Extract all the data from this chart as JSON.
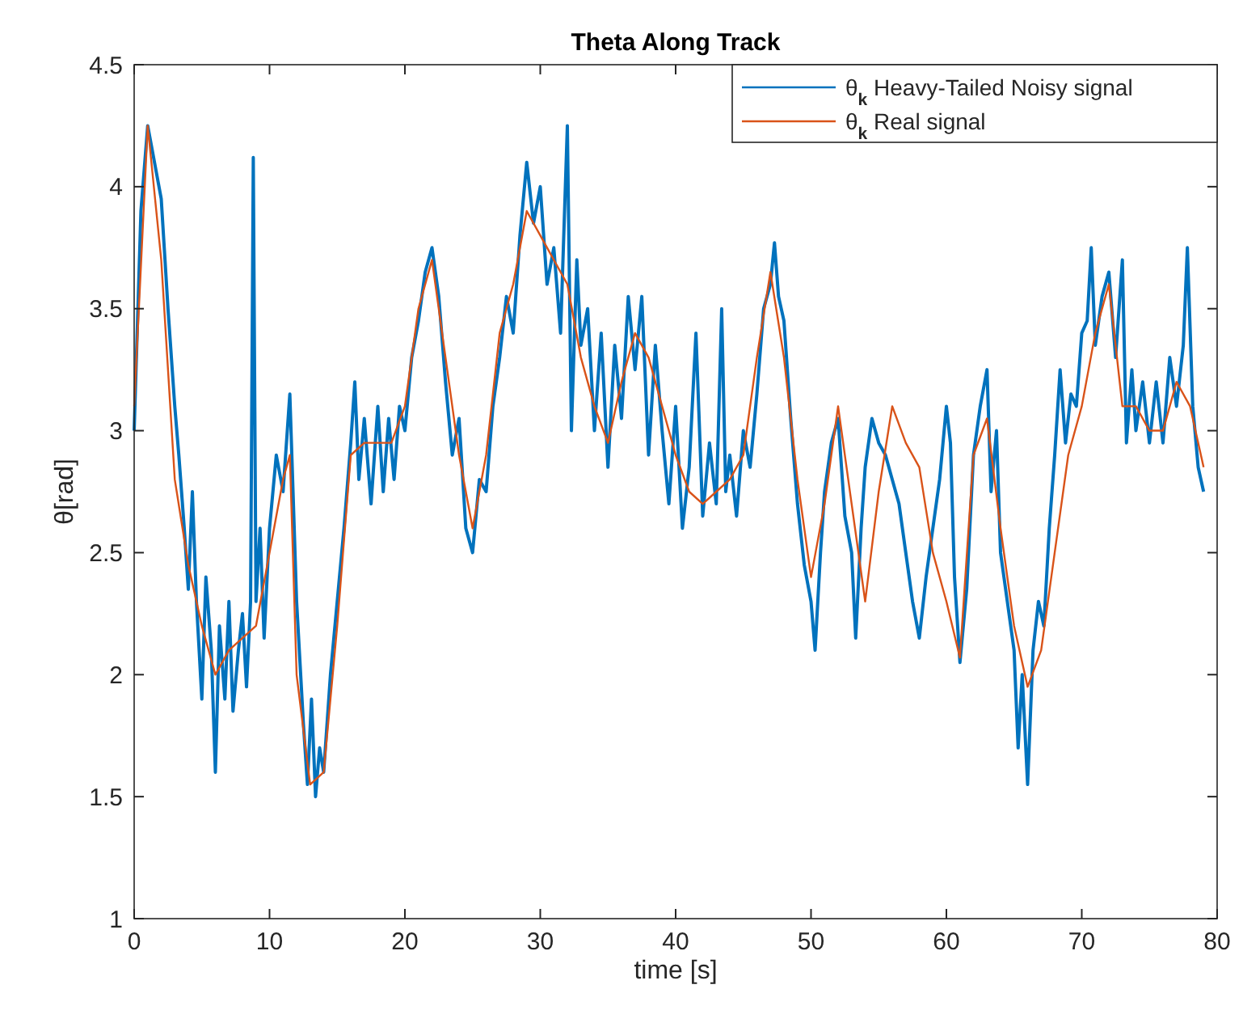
{
  "chart_data": {
    "type": "line",
    "title": "Theta Along Track",
    "xlabel": "time [s]",
    "ylabel": "θ[rad]",
    "xlim": [
      0,
      80
    ],
    "xticks": [
      0,
      10,
      20,
      30,
      40,
      50,
      60,
      70,
      80
    ],
    "ylim": [
      1,
      4.5
    ],
    "yticks": [
      1,
      1.5,
      2,
      2.5,
      3,
      3.5,
      4,
      4.5
    ],
    "grid": false,
    "legend": "top right",
    "line_style": "solid",
    "marker": "none",
    "series": [
      {
        "name": "θ$_{k}$ Heavy-Tailed Noisy signal",
        "color": "#0072bd",
        "x": [
          0,
          0.5,
          1,
          1.5,
          2,
          2.5,
          3,
          3.3,
          3.7,
          4,
          4.3,
          4.6,
          5,
          5.3,
          5.7,
          6,
          6.3,
          6.7,
          7,
          7.3,
          7.7,
          8,
          8.3,
          8.6,
          8.8,
          9,
          9.3,
          9.6,
          10,
          10.5,
          11,
          11.5,
          12,
          12.5,
          12.8,
          13.1,
          13.4,
          13.7,
          14,
          14.5,
          15,
          15.5,
          16,
          16.3,
          16.6,
          17,
          17.5,
          18,
          18.4,
          18.8,
          19.2,
          19.6,
          20,
          20.5,
          21,
          21.5,
          22,
          22.5,
          23,
          23.5,
          24,
          24.5,
          25,
          25.5,
          26,
          26.5,
          27,
          27.5,
          28,
          28.5,
          29,
          29.5,
          30,
          30.5,
          31,
          31.5,
          32,
          32.3,
          32.7,
          33,
          33.5,
          34,
          34.5,
          35,
          35.5,
          36,
          36.5,
          37,
          37.5,
          38,
          38.5,
          39,
          39.5,
          40,
          40.5,
          41,
          41.5,
          42,
          42.5,
          43,
          43.4,
          43.7,
          44,
          44.5,
          45,
          45.5,
          46,
          46.5,
          47,
          47.3,
          47.6,
          48,
          48.5,
          49,
          49.5,
          50,
          50.3,
          50.7,
          51,
          51.5,
          52,
          52.5,
          53,
          53.3,
          53.7,
          54,
          54.5,
          55,
          55.5,
          56,
          56.5,
          57,
          57.5,
          58,
          58.5,
          59,
          59.5,
          60,
          60.3,
          60.6,
          61,
          61.5,
          62,
          62.5,
          63,
          63.3,
          63.7,
          64,
          64.5,
          65,
          65.3,
          65.6,
          66,
          66.4,
          66.8,
          67.2,
          67.6,
          68,
          68.4,
          68.8,
          69.2,
          69.6,
          70,
          70.4,
          70.7,
          71,
          71.5,
          72,
          72.5,
          73,
          73.3,
          73.7,
          74,
          74.5,
          75,
          75.5,
          76,
          76.5,
          77,
          77.5,
          77.8,
          78.2,
          78.6,
          79
        ],
        "values": [
          3.0,
          3.9,
          4.25,
          4.1,
          3.95,
          3.5,
          3.1,
          2.9,
          2.6,
          2.35,
          2.75,
          2.3,
          1.9,
          2.4,
          2.1,
          1.6,
          2.2,
          1.9,
          2.3,
          1.85,
          2.1,
          2.25,
          1.95,
          2.3,
          4.12,
          2.3,
          2.6,
          2.15,
          2.6,
          2.9,
          2.75,
          3.15,
          2.3,
          1.8,
          1.55,
          1.9,
          1.5,
          1.7,
          1.6,
          2.0,
          2.3,
          2.6,
          2.95,
          3.2,
          2.8,
          3.05,
          2.7,
          3.1,
          2.75,
          3.05,
          2.8,
          3.1,
          3.0,
          3.3,
          3.45,
          3.65,
          3.75,
          3.55,
          3.2,
          2.9,
          3.05,
          2.6,
          2.5,
          2.8,
          2.75,
          3.1,
          3.3,
          3.55,
          3.4,
          3.8,
          4.1,
          3.85,
          4.0,
          3.6,
          3.75,
          3.4,
          4.25,
          3.0,
          3.7,
          3.35,
          3.5,
          3.0,
          3.4,
          2.85,
          3.35,
          3.05,
          3.55,
          3.25,
          3.55,
          2.9,
          3.35,
          3.0,
          2.7,
          3.1,
          2.6,
          2.85,
          3.4,
          2.65,
          2.95,
          2.7,
          3.5,
          2.75,
          2.9,
          2.65,
          3.0,
          2.85,
          3.15,
          3.5,
          3.6,
          3.77,
          3.55,
          3.45,
          3.05,
          2.7,
          2.45,
          2.3,
          2.1,
          2.5,
          2.75,
          2.95,
          3.05,
          2.65,
          2.5,
          2.15,
          2.6,
          2.85,
          3.05,
          2.95,
          2.9,
          2.8,
          2.7,
          2.5,
          2.3,
          2.15,
          2.4,
          2.6,
          2.8,
          3.1,
          2.95,
          2.4,
          2.05,
          2.35,
          2.9,
          3.1,
          3.25,
          2.75,
          3.0,
          2.5,
          2.3,
          2.1,
          1.7,
          2.0,
          1.55,
          2.1,
          2.3,
          2.2,
          2.6,
          2.9,
          3.25,
          2.95,
          3.15,
          3.1,
          3.4,
          3.45,
          3.75,
          3.35,
          3.55,
          3.65,
          3.3,
          3.7,
          2.95,
          3.25,
          3.0,
          3.2,
          2.95,
          3.2,
          2.95,
          3.3,
          3.1,
          3.35,
          3.75,
          3.1,
          2.85,
          2.75
        ]
      },
      {
        "name": "θ$_{k}$ Real signal",
        "color": "#d95319",
        "x": [
          0,
          1,
          2,
          3,
          4,
          5,
          6,
          7,
          9,
          11,
          11.5,
          12,
          13,
          14,
          15,
          16,
          17,
          19,
          20,
          21,
          22,
          23,
          24,
          25,
          26,
          27,
          28,
          29,
          30,
          31,
          32,
          33,
          34,
          35,
          36,
          37,
          38,
          39,
          40,
          41,
          42,
          43,
          44,
          45,
          46,
          47,
          48,
          49,
          50,
          51,
          52,
          53,
          54,
          55,
          56,
          57,
          58,
          59,
          60,
          61,
          62,
          63,
          64,
          65,
          66,
          67,
          68,
          69,
          70,
          71,
          72,
          73,
          74,
          75,
          76,
          77,
          78,
          79
        ],
        "values": [
          3.1,
          4.25,
          3.7,
          2.8,
          2.45,
          2.2,
          2.0,
          2.1,
          2.2,
          2.8,
          2.9,
          2.0,
          1.55,
          1.6,
          2.2,
          2.9,
          2.95,
          2.95,
          3.1,
          3.5,
          3.7,
          3.3,
          2.9,
          2.6,
          2.9,
          3.4,
          3.6,
          3.9,
          3.8,
          3.7,
          3.6,
          3.3,
          3.1,
          2.95,
          3.2,
          3.4,
          3.3,
          3.1,
          2.9,
          2.75,
          2.7,
          2.75,
          2.8,
          2.9,
          3.3,
          3.65,
          3.3,
          2.8,
          2.4,
          2.7,
          3.1,
          2.7,
          2.3,
          2.75,
          3.1,
          2.95,
          2.85,
          2.5,
          2.3,
          2.07,
          2.9,
          3.05,
          2.6,
          2.2,
          1.95,
          2.1,
          2.5,
          2.9,
          3.1,
          3.4,
          3.6,
          3.1,
          3.1,
          3.0,
          3.0,
          3.2,
          3.1,
          2.85
        ]
      }
    ]
  }
}
